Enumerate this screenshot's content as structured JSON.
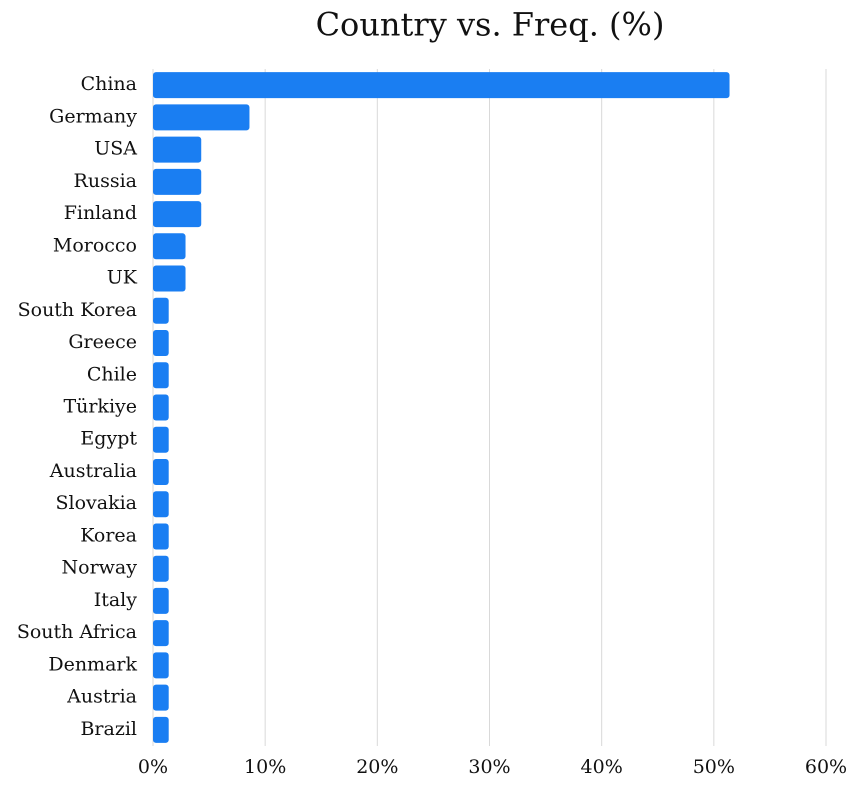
{
  "chart_data": {
    "type": "bar",
    "orientation": "horizontal",
    "title": "Country vs. Freq. (%)",
    "categories": [
      "China",
      "Germany",
      "USA",
      "Russia",
      "Finland",
      "Morocco",
      "UK",
      "South Korea",
      "Greece",
      "Chile",
      "Türkiye",
      "Egypt",
      "Australia",
      "Slovakia",
      "Korea",
      "Norway",
      "Italy",
      "South Africa",
      "Denmark",
      "Austria",
      "Brazil"
    ],
    "values": [
      51.4,
      8.6,
      4.3,
      4.3,
      4.3,
      2.9,
      2.9,
      1.4,
      1.4,
      1.4,
      1.4,
      1.4,
      1.4,
      1.4,
      1.4,
      1.4,
      1.4,
      1.4,
      1.4,
      1.4,
      1.4
    ],
    "color": "#1a7ef2",
    "xlim": [
      0,
      60
    ],
    "xticks": [
      {
        "value": 0,
        "label": "0%"
      },
      {
        "value": 10,
        "label": "10%"
      },
      {
        "value": 20,
        "label": "20%"
      },
      {
        "value": 30,
        "label": "30%"
      },
      {
        "value": 40,
        "label": "40%"
      },
      {
        "value": 50,
        "label": "50%"
      },
      {
        "value": 60,
        "label": "60%"
      }
    ],
    "grid": true
  }
}
